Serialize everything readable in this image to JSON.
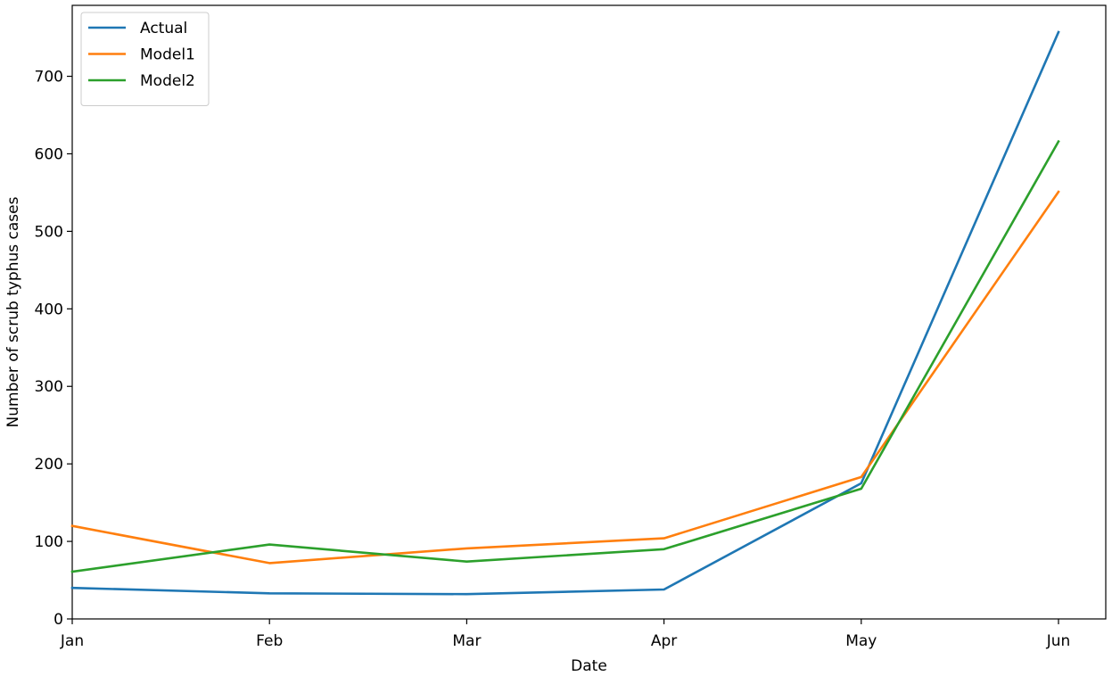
{
  "chart_data": {
    "type": "line",
    "xlabel": "Date",
    "ylabel": "Number of scrub typhus cases",
    "categories": [
      "Jan",
      "Feb",
      "Mar",
      "Apr",
      "May",
      "Jun"
    ],
    "ylim": [
      0,
      757
    ],
    "yticks": [
      0,
      100,
      200,
      300,
      400,
      500,
      600,
      700
    ],
    "series": [
      {
        "name": "Actual",
        "color": "#1f77b4",
        "values": [
          40,
          33,
          32,
          38,
          175,
          757
        ]
      },
      {
        "name": "Model1",
        "color": "#ff7f0e",
        "values": [
          120,
          72,
          91,
          104,
          183,
          551
        ]
      },
      {
        "name": "Model2",
        "color": "#2ca02c",
        "values": [
          61,
          96,
          74,
          90,
          168,
          616
        ]
      }
    ],
    "legend": {
      "position": "top-left"
    },
    "grid": false
  }
}
